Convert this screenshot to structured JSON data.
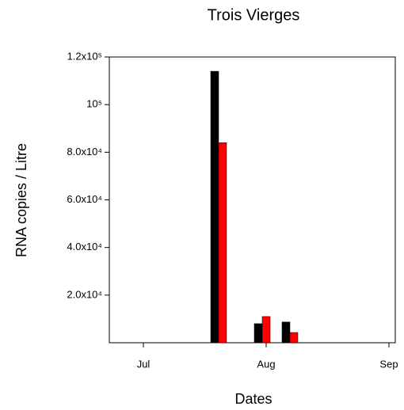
{
  "chart_data": {
    "type": "bar",
    "title": "Trois Vierges",
    "x_label": "Dates",
    "y_label": "RNA copies / Litre",
    "x": [
      19,
      30,
      37
    ],
    "series": [
      {
        "color": "#000000",
        "values": [
          114000,
          8000,
          8700
        ]
      },
      {
        "color": "#ff0000",
        "values": [
          84000,
          11000,
          4300
        ]
      }
    ],
    "xlim": [
      -8.6,
      63.6
    ],
    "xticks": [
      {
        "value": 0,
        "label": "Jul"
      },
      {
        "value": 31,
        "label": "Aug"
      },
      {
        "value": 62,
        "label": "Sep"
      }
    ],
    "ylim": [
      0,
      120000
    ],
    "yticks": [
      {
        "value": 20000,
        "label": "2.0x10⁴"
      },
      {
        "value": 40000,
        "label": "4.0x10⁴"
      },
      {
        "value": 60000,
        "label": "6.0x10⁴"
      },
      {
        "value": 80000,
        "label": "8.0x10⁴"
      },
      {
        "value": 100000,
        "label": "10⁵"
      },
      {
        "value": 120000,
        "label": "1.2x10⁵"
      }
    ],
    "grid": false
  }
}
